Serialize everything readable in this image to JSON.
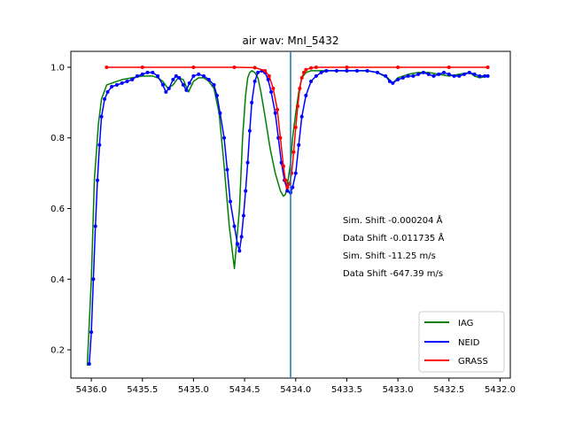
{
  "chart_data": {
    "type": "line",
    "title": "air wav: MnI_5432",
    "xlabel": "",
    "ylabel": "",
    "xlim": [
      5436.2,
      5431.9
    ],
    "ylim": [
      0.12,
      1.045
    ],
    "x_reversed": true,
    "grid": false,
    "xticks": [
      5436.0,
      5435.5,
      5435.0,
      5434.5,
      5434.0,
      5433.5,
      5433.0,
      5432.5,
      5432.0
    ],
    "xtick_labels": [
      "5436.0",
      "5435.5",
      "5435.0",
      "5434.5",
      "5434.0",
      "5433.5",
      "5433.0",
      "5432.5",
      "5432.0"
    ],
    "yticks": [
      0.2,
      0.4,
      0.6,
      0.8,
      1.0
    ],
    "ytick_labels": [
      "0.2",
      "0.4",
      "0.6",
      "0.8",
      "1.0"
    ],
    "vline": {
      "x": 5434.05,
      "color": "#1f77b4"
    },
    "annotations": [
      "Sim. Shift -0.000204 Å",
      "Data Shift -0.011735 Å",
      "Sim. Shift -11.25 m/s",
      "Data Shift -647.39 m/s"
    ],
    "legend": {
      "position": "lower right"
    },
    "series": [
      {
        "name": "IAG",
        "color": "#008000",
        "style": "line",
        "x": [
          5436.04,
          5436.0,
          5435.97,
          5435.93,
          5435.9,
          5435.85,
          5435.8,
          5435.75,
          5435.7,
          5435.6,
          5435.5,
          5435.45,
          5435.4,
          5435.35,
          5435.3,
          5435.25,
          5435.2,
          5435.15,
          5435.1,
          5435.05,
          5435.0,
          5434.95,
          5434.9,
          5434.85,
          5434.8,
          5434.75,
          5434.7,
          5434.65,
          5434.6,
          5434.55,
          5434.52,
          5434.49,
          5434.47,
          5434.45,
          5434.43,
          5434.4,
          5434.37,
          5434.34,
          5434.3,
          5434.25,
          5434.2,
          5434.15,
          5434.12,
          5434.1,
          5434.08,
          5434.05,
          5434.03,
          5434.0,
          5433.97,
          5433.94,
          5433.9,
          5433.85,
          5433.8,
          5433.7,
          5433.6,
          5433.5,
          5433.3,
          5433.2,
          5433.1,
          5433.05,
          5433.0,
          5432.9,
          5432.8,
          5432.7,
          5432.6,
          5432.5,
          5432.4,
          5432.3,
          5432.25,
          5432.2,
          5432.12
        ],
        "y": [
          0.155,
          0.4,
          0.68,
          0.84,
          0.91,
          0.95,
          0.955,
          0.96,
          0.965,
          0.97,
          0.975,
          0.975,
          0.975,
          0.97,
          0.96,
          0.94,
          0.95,
          0.97,
          0.965,
          0.93,
          0.96,
          0.97,
          0.97,
          0.96,
          0.94,
          0.87,
          0.72,
          0.55,
          0.43,
          0.6,
          0.8,
          0.92,
          0.97,
          0.985,
          0.99,
          0.985,
          0.97,
          0.93,
          0.86,
          0.77,
          0.7,
          0.65,
          0.635,
          0.64,
          0.67,
          0.73,
          0.8,
          0.87,
          0.93,
          0.97,
          0.985,
          0.99,
          0.99,
          0.99,
          0.99,
          0.99,
          0.99,
          0.985,
          0.97,
          0.955,
          0.97,
          0.98,
          0.985,
          0.985,
          0.98,
          0.975,
          0.98,
          0.985,
          0.975,
          0.97,
          0.975
        ]
      },
      {
        "name": "NEID",
        "color": "#0000ff",
        "style": "line+markers",
        "x": [
          5436.02,
          5436.0,
          5435.98,
          5435.96,
          5435.94,
          5435.92,
          5435.9,
          5435.87,
          5435.84,
          5435.8,
          5435.75,
          5435.7,
          5435.65,
          5435.6,
          5435.55,
          5435.5,
          5435.45,
          5435.4,
          5435.35,
          5435.3,
          5435.27,
          5435.24,
          5435.2,
          5435.17,
          5435.14,
          5435.1,
          5435.07,
          5435.04,
          5435.0,
          5434.95,
          5434.9,
          5434.85,
          5434.8,
          5434.77,
          5434.74,
          5434.7,
          5434.67,
          5434.64,
          5434.6,
          5434.57,
          5434.55,
          5434.53,
          5434.51,
          5434.49,
          5434.47,
          5434.45,
          5434.43,
          5434.4,
          5434.37,
          5434.33,
          5434.3,
          5434.27,
          5434.24,
          5434.2,
          5434.17,
          5434.14,
          5434.11,
          5434.08,
          5434.05,
          5434.03,
          5434.0,
          5433.97,
          5433.94,
          5433.9,
          5433.85,
          5433.8,
          5433.75,
          5433.7,
          5433.6,
          5433.5,
          5433.4,
          5433.3,
          5433.2,
          5433.12,
          5433.08,
          5433.05,
          5433.0,
          5432.95,
          5432.9,
          5432.85,
          5432.8,
          5432.75,
          5432.7,
          5432.65,
          5432.6,
          5432.55,
          5432.5,
          5432.45,
          5432.4,
          5432.35,
          5432.3,
          5432.25,
          5432.2,
          5432.15,
          5432.12
        ],
        "y": [
          0.16,
          0.25,
          0.4,
          0.55,
          0.68,
          0.78,
          0.86,
          0.91,
          0.93,
          0.945,
          0.95,
          0.955,
          0.96,
          0.965,
          0.975,
          0.98,
          0.985,
          0.985,
          0.975,
          0.95,
          0.93,
          0.94,
          0.965,
          0.975,
          0.97,
          0.95,
          0.935,
          0.955,
          0.975,
          0.98,
          0.975,
          0.965,
          0.95,
          0.92,
          0.87,
          0.8,
          0.71,
          0.62,
          0.55,
          0.5,
          0.48,
          0.52,
          0.58,
          0.65,
          0.73,
          0.82,
          0.9,
          0.96,
          0.985,
          0.99,
          0.985,
          0.965,
          0.93,
          0.87,
          0.8,
          0.73,
          0.68,
          0.65,
          0.645,
          0.66,
          0.7,
          0.78,
          0.86,
          0.92,
          0.96,
          0.975,
          0.985,
          0.99,
          0.99,
          0.99,
          0.99,
          0.99,
          0.985,
          0.975,
          0.96,
          0.955,
          0.965,
          0.97,
          0.975,
          0.975,
          0.98,
          0.985,
          0.98,
          0.975,
          0.98,
          0.985,
          0.98,
          0.975,
          0.975,
          0.98,
          0.985,
          0.98,
          0.975,
          0.975,
          0.975
        ]
      },
      {
        "name": "GRASS",
        "color": "#ff0000",
        "style": "line+markers",
        "x": [
          5435.85,
          5435.5,
          5435.0,
          5434.6,
          5434.4,
          5434.3,
          5434.26,
          5434.22,
          5434.18,
          5434.15,
          5434.12,
          5434.1,
          5434.08,
          5434.06,
          5434.04,
          5434.02,
          5434.0,
          5433.98,
          5433.96,
          5433.94,
          5433.92,
          5433.9,
          5433.85,
          5433.8,
          5433.5,
          5433.0,
          5432.5,
          5432.12
        ],
        "y": [
          1.0,
          1.0,
          1.0,
          1.0,
          0.999,
          0.99,
          0.975,
          0.94,
          0.88,
          0.8,
          0.72,
          0.68,
          0.66,
          0.67,
          0.7,
          0.76,
          0.83,
          0.89,
          0.94,
          0.97,
          0.985,
          0.993,
          0.998,
          1.0,
          1.0,
          1.0,
          1.0,
          1.0
        ]
      }
    ]
  }
}
